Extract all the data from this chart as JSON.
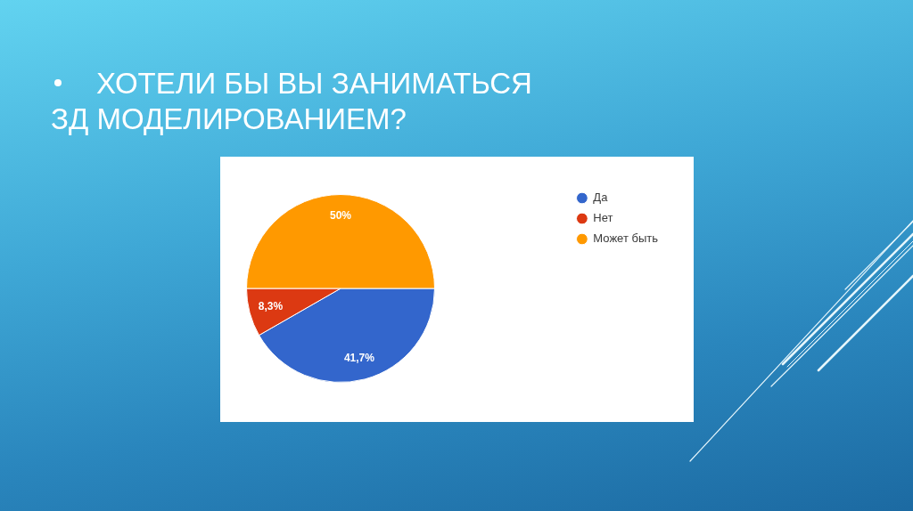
{
  "chart_data": {
    "type": "pie",
    "title": "ХОТЕЛИ БЫ ВЫ ЗАНИМАТЬСЯ ЗД МОДЕЛИРОВАНИЕМ?",
    "categories": [
      "Да",
      "Нет",
      "Может быть"
    ],
    "values": [
      41.7,
      8.3,
      50
    ],
    "colors": [
      "#3366cc",
      "#dc3912",
      "#ff9900"
    ],
    "value_labels": [
      "41,7%",
      "8,3%",
      "50%"
    ],
    "legend": "top right"
  }
}
